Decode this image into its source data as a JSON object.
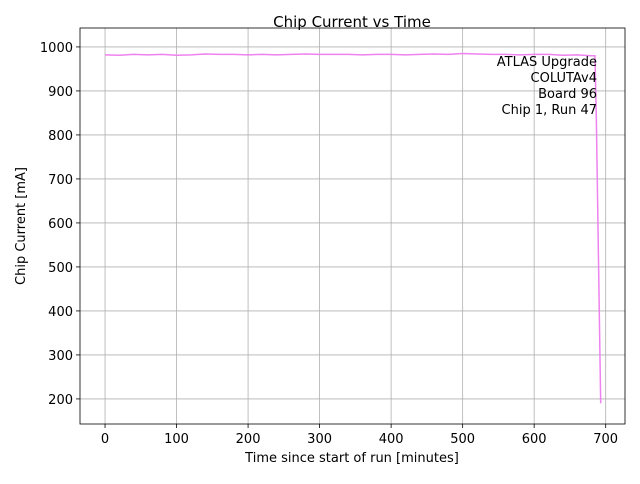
{
  "chart_data": {
    "type": "line",
    "title": "Chip Current vs Time",
    "x_label": "Time since start of run [minutes]",
    "y_label": "Chip Current [mA]",
    "annotations": [
      "ATLAS Upgrade",
      "COLUTAv4",
      "Board 96",
      "Chip 1, Run 47"
    ],
    "x": [
      0,
      20,
      40,
      60,
      80,
      100,
      120,
      140,
      160,
      180,
      200,
      220,
      240,
      260,
      280,
      300,
      320,
      340,
      360,
      380,
      400,
      420,
      440,
      460,
      480,
      500,
      520,
      540,
      560,
      580,
      600,
      620,
      640,
      660,
      680,
      685,
      687,
      693
    ],
    "series": [
      {
        "name": "Chip Current",
        "color": "#ee82ee",
        "values": [
          982,
          981,
          983,
          982,
          983,
          981,
          982,
          984,
          983,
          983,
          982,
          983,
          982,
          983,
          984,
          983,
          983,
          983,
          982,
          983,
          983,
          982,
          983,
          984,
          983,
          985,
          984,
          983,
          983,
          982,
          983,
          983,
          981,
          982,
          980,
          980,
          830,
          190
        ]
      }
    ],
    "xlim": [
      -35,
      727
    ],
    "ylim": [
      143,
      1043
    ],
    "xticks": [
      0,
      100,
      200,
      300,
      400,
      500,
      600,
      700
    ],
    "yticks": [
      200,
      300,
      400,
      500,
      600,
      700,
      800,
      900,
      1000
    ],
    "grid": true
  }
}
